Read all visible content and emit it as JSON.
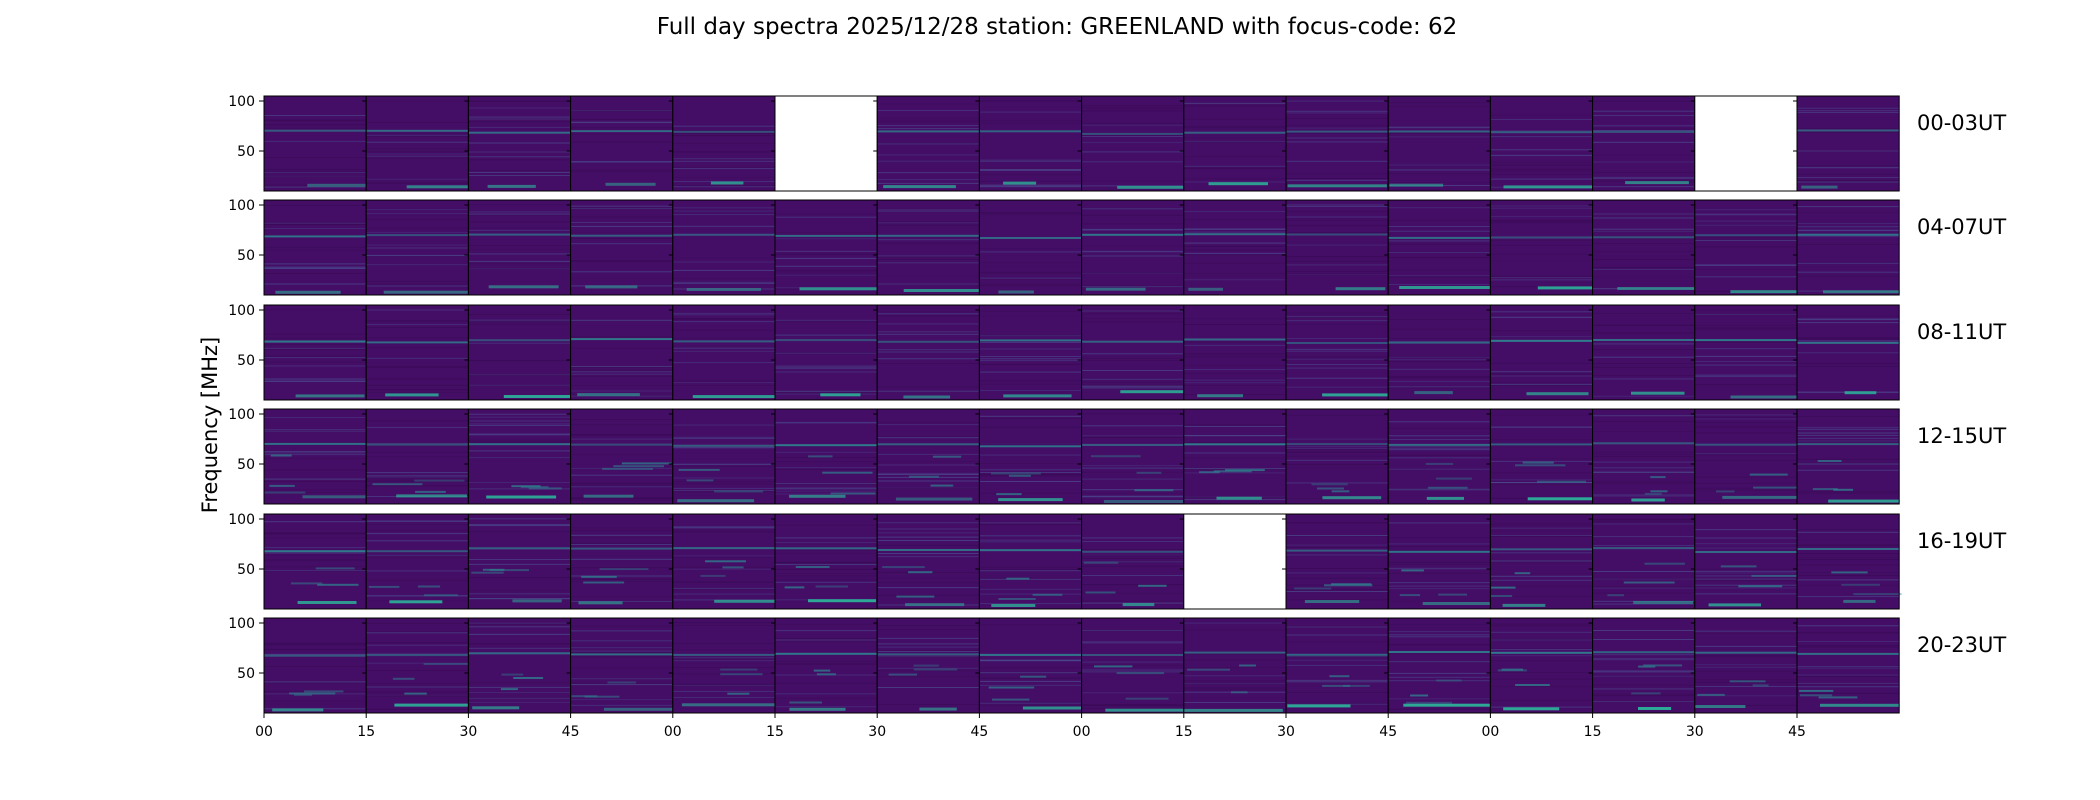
{
  "chart_data": {
    "type": "heatmap",
    "title": "Full day spectra 2025/12/28 station: GREENLAND with focus-code: 62",
    "ylabel": "Frequency [MHz]",
    "xlabel": "",
    "colormap": "viridis",
    "ylim": [
      10,
      105
    ],
    "yticks": [
      100,
      50
    ],
    "xticks": [
      "00",
      "15",
      "30",
      "45",
      "00",
      "15",
      "30",
      "45",
      "00",
      "15",
      "30",
      "45",
      "00",
      "15",
      "30",
      "45"
    ],
    "panels_per_row": 16,
    "rows": [
      {
        "label": "00-03UT",
        "empty_panels": [
          5,
          14
        ]
      },
      {
        "label": "04-07UT",
        "empty_panels": []
      },
      {
        "label": "08-11UT",
        "empty_panels": []
      },
      {
        "label": "12-15UT",
        "empty_panels": []
      },
      {
        "label": "16-19UT",
        "empty_panels": [
          9
        ]
      },
      {
        "label": "20-23UT",
        "empty_panels": []
      }
    ],
    "colors": {
      "background": "#440e66",
      "dark": "#3a0a55",
      "band": "#2f7f8e",
      "bright": "#2cb39a",
      "mid": "#4b4a8d",
      "empty": "#ffffff"
    }
  }
}
